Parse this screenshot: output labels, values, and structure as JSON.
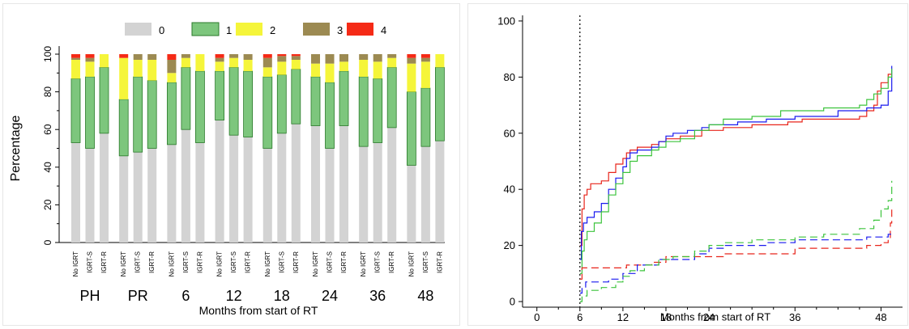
{
  "chart_data": [
    {
      "type": "bar",
      "stacked": true,
      "ylabel": "Percentage",
      "xlabel": "Months from start of RT",
      "ylim": [
        0,
        100
      ],
      "yticks": [
        0,
        20,
        40,
        60,
        80,
        100
      ],
      "legend": {
        "placement": "top",
        "entries": [
          "0",
          "1",
          "2",
          "3",
          "4"
        ],
        "colors": [
          "#d3d3d3",
          "#7dc67d",
          "#f5f53a",
          "#9c8a52",
          "#f52a16"
        ]
      },
      "groups": [
        {
          "label": "PH",
          "bars": [
            {
              "label": "No IGRT",
              "values": [
                53,
                34,
                10,
                1,
                2
              ]
            },
            {
              "label": "IGRT-S",
              "values": [
                50,
                38,
                8,
                2,
                2
              ]
            },
            {
              "label": "IGRT-R",
              "values": [
                58,
                35,
                7,
                0,
                0
              ]
            }
          ]
        },
        {
          "label": "PR",
          "bars": [
            {
              "label": "No IGRT",
              "values": [
                46,
                30,
                22,
                0,
                2
              ]
            },
            {
              "label": "IGRT-S",
              "values": [
                48,
                40,
                9,
                3,
                0
              ]
            },
            {
              "label": "IGRT-R",
              "values": [
                50,
                36,
                11,
                3,
                0
              ]
            }
          ]
        },
        {
          "label": "6",
          "bars": [
            {
              "label": "No IGRT",
              "values": [
                52,
                33,
                5,
                7,
                3
              ]
            },
            {
              "label": "IGRT-S",
              "values": [
                60,
                33,
                5,
                2,
                0
              ]
            },
            {
              "label": "IGRT-R",
              "values": [
                53,
                38,
                9,
                0,
                0
              ]
            }
          ]
        },
        {
          "label": "12",
          "bars": [
            {
              "label": "No IGRT",
              "values": [
                65,
                26,
                5,
                2,
                2
              ]
            },
            {
              "label": "IGRT-S",
              "values": [
                57,
                36,
                5,
                2,
                0
              ]
            },
            {
              "label": "IGRT-R",
              "values": [
                56,
                35,
                6,
                3,
                0
              ]
            }
          ]
        },
        {
          "label": "18",
          "bars": [
            {
              "label": "No IGRT",
              "values": [
                50,
                38,
                5,
                5,
                2
              ]
            },
            {
              "label": "IGRT-S",
              "values": [
                58,
                31,
                7,
                3,
                1
              ]
            },
            {
              "label": "IGRT-R",
              "values": [
                63,
                29,
                5,
                2,
                1
              ]
            }
          ]
        },
        {
          "label": "24",
          "bars": [
            {
              "label": "No IGRT",
              "values": [
                62,
                26,
                7,
                5,
                0
              ]
            },
            {
              "label": "IGRT-S",
              "values": [
                50,
                35,
                10,
                5,
                0
              ]
            },
            {
              "label": "IGRT-R",
              "values": [
                62,
                29,
                5,
                4,
                0
              ]
            }
          ]
        },
        {
          "label": "36",
          "bars": [
            {
              "label": "No IGRT",
              "values": [
                51,
                37,
                9,
                3,
                0
              ]
            },
            {
              "label": "IGRT-S",
              "values": [
                53,
                34,
                9,
                4,
                0
              ]
            },
            {
              "label": "IGRT-R",
              "values": [
                61,
                32,
                5,
                2,
                0
              ]
            }
          ]
        },
        {
          "label": "48",
          "bars": [
            {
              "label": "No IGRT",
              "values": [
                41,
                39,
                15,
                3,
                2
              ]
            },
            {
              "label": "IGRT-S",
              "values": [
                51,
                31,
                14,
                2,
                2
              ]
            },
            {
              "label": "IGRT-R",
              "values": [
                54,
                39,
                7,
                0,
                0
              ]
            }
          ]
        }
      ]
    },
    {
      "type": "line",
      "step": true,
      "xlabel": "Months from start of RT",
      "ylabel": "",
      "xlim": [
        -2,
        51
      ],
      "ylim": [
        -2,
        102
      ],
      "xticks": [
        0,
        6,
        12,
        18,
        24,
        36,
        48
      ],
      "yticks": [
        0,
        20,
        40,
        60,
        80,
        100
      ],
      "vline": {
        "x": 6,
        "style": "dotted",
        "color": "#000000"
      },
      "series": [
        {
          "color": "#e8251b",
          "dash": false,
          "points": [
            [
              6,
              20
            ],
            [
              6.3,
              33
            ],
            [
              6.6,
              38
            ],
            [
              7,
              40
            ],
            [
              7.5,
              42
            ],
            [
              9,
              43
            ],
            [
              10,
              46
            ],
            [
              11,
              49
            ],
            [
              12,
              51
            ],
            [
              12.5,
              53
            ],
            [
              13,
              54
            ],
            [
              14,
              55
            ],
            [
              16,
              56
            ],
            [
              17,
              57
            ],
            [
              18,
              58
            ],
            [
              20,
              59
            ],
            [
              23,
              61
            ],
            [
              26,
              62
            ],
            [
              30,
              63
            ],
            [
              35,
              64
            ],
            [
              37,
              65
            ],
            [
              45,
              66
            ],
            [
              46,
              68
            ],
            [
              47,
              70
            ],
            [
              47.5,
              75
            ],
            [
              48,
              78
            ],
            [
              49,
              81
            ],
            [
              49.5,
              81
            ]
          ]
        },
        {
          "color": "#1a1aef",
          "dash": false,
          "points": [
            [
              6,
              15
            ],
            [
              6.2,
              25
            ],
            [
              6.5,
              28
            ],
            [
              7,
              30
            ],
            [
              8,
              32
            ],
            [
              9,
              35
            ],
            [
              10,
              40
            ],
            [
              11,
              44
            ],
            [
              12,
              48
            ],
            [
              12.5,
              51
            ],
            [
              13,
              53
            ],
            [
              14,
              54
            ],
            [
              16,
              55
            ],
            [
              17,
              57
            ],
            [
              18,
              59
            ],
            [
              19,
              60
            ],
            [
              21,
              61
            ],
            [
              23,
              62
            ],
            [
              24,
              63
            ],
            [
              28,
              64
            ],
            [
              32,
              65
            ],
            [
              36,
              66
            ],
            [
              42,
              68
            ],
            [
              46,
              69
            ],
            [
              48,
              70
            ],
            [
              49,
              75
            ],
            [
              49.5,
              84
            ]
          ]
        },
        {
          "color": "#3cc43c",
          "dash": false,
          "points": [
            [
              6,
              10
            ],
            [
              6.3,
              18
            ],
            [
              6.6,
              22
            ],
            [
              7,
              25
            ],
            [
              8,
              28
            ],
            [
              9,
              32
            ],
            [
              10,
              38
            ],
            [
              11,
              42
            ],
            [
              12,
              46
            ],
            [
              13,
              50
            ],
            [
              14,
              52
            ],
            [
              16,
              54
            ],
            [
              17,
              55
            ],
            [
              18,
              57
            ],
            [
              20,
              58
            ],
            [
              22,
              61
            ],
            [
              24,
              63
            ],
            [
              26,
              65
            ],
            [
              30,
              66
            ],
            [
              34,
              68
            ],
            [
              40,
              69
            ],
            [
              45,
              70
            ],
            [
              46,
              72
            ],
            [
              47,
              74
            ],
            [
              48,
              76
            ],
            [
              49,
              80
            ],
            [
              49.5,
              83
            ]
          ]
        },
        {
          "color": "#e8251b",
          "dash": true,
          "points": [
            [
              6,
              8
            ],
            [
              6.3,
              12
            ],
            [
              12,
              12
            ],
            [
              12.5,
              13
            ],
            [
              16,
              14
            ],
            [
              18,
              16
            ],
            [
              24,
              16
            ],
            [
              26,
              17
            ],
            [
              34,
              17
            ],
            [
              36,
              19
            ],
            [
              45,
              19
            ],
            [
              46,
              20
            ],
            [
              48,
              21
            ],
            [
              49,
              22
            ],
            [
              49.3,
              28
            ],
            [
              49.5,
              33
            ]
          ]
        },
        {
          "color": "#1a1aef",
          "dash": true,
          "points": [
            [
              6,
              3
            ],
            [
              6.3,
              5
            ],
            [
              6.8,
              7
            ],
            [
              10,
              8
            ],
            [
              12,
              10
            ],
            [
              14,
              13
            ],
            [
              17,
              15
            ],
            [
              22,
              17
            ],
            [
              24,
              19
            ],
            [
              26,
              20
            ],
            [
              32,
              21
            ],
            [
              36,
              22
            ],
            [
              46,
              23
            ],
            [
              49,
              24
            ],
            [
              49.5,
              24
            ]
          ]
        },
        {
          "color": "#3cc43c",
          "dash": true,
          "points": [
            [
              6,
              0
            ],
            [
              6.3,
              2
            ],
            [
              7,
              4
            ],
            [
              9,
              5
            ],
            [
              11,
              7
            ],
            [
              12,
              9
            ],
            [
              13,
              11
            ],
            [
              15,
              13
            ],
            [
              17,
              15
            ],
            [
              19,
              16
            ],
            [
              22,
              18
            ],
            [
              24,
              20
            ],
            [
              26,
              21
            ],
            [
              30,
              22
            ],
            [
              36,
              23
            ],
            [
              40,
              24
            ],
            [
              45,
              26
            ],
            [
              47,
              29
            ],
            [
              48,
              33
            ],
            [
              49,
              36
            ],
            [
              49.5,
              43
            ]
          ]
        }
      ]
    }
  ]
}
